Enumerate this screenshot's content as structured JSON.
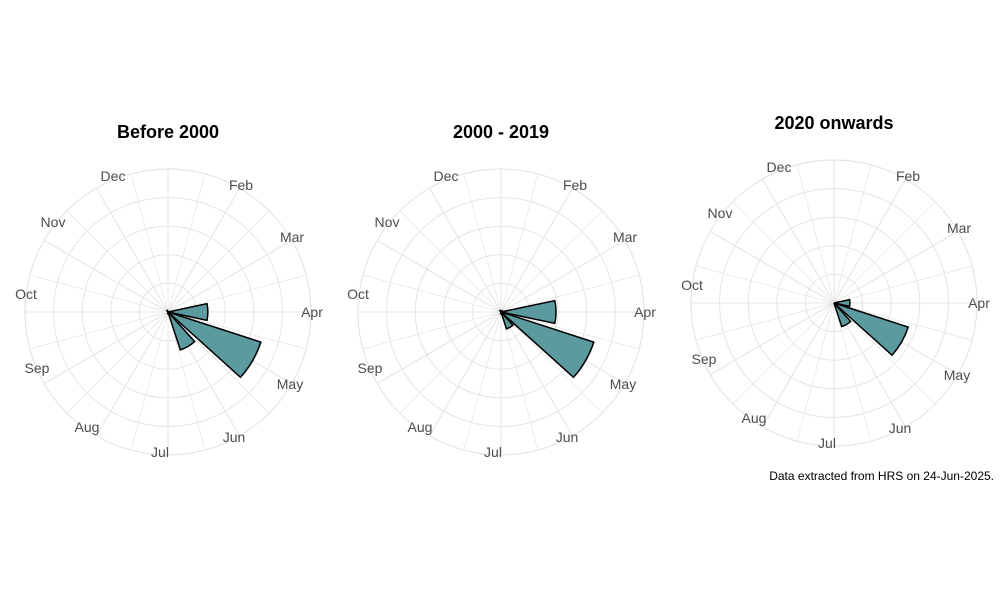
{
  "colors": {
    "bar_fill": "#5B9A9E",
    "bar_stroke": "#000000",
    "grid": "#E5E5E5",
    "label": "#4D4D4D"
  },
  "caption": "Data extracted from HRS on 24-Jun-2025.",
  "chart_data": [
    {
      "type": "bar",
      "polar": true,
      "title": "Before 2000",
      "categories": [
        "Jan",
        "Feb",
        "Mar",
        "Apr",
        "May",
        "Jun",
        "Jul",
        "Aug",
        "Sep",
        "Oct",
        "Nov",
        "Dec"
      ],
      "month_labels": [
        "Dec",
        "Feb",
        "Nov",
        "Mar",
        "Oct",
        "Apr",
        "Sep",
        "May",
        "Aug",
        "Jun",
        "Jul"
      ],
      "values": [
        0,
        0,
        0,
        0.45,
        1.1,
        0.45,
        0.02,
        0,
        0,
        0,
        0,
        0.02
      ],
      "note": "values approximated as radial length relative to the outer grid ring",
      "grid": true
    },
    {
      "type": "bar",
      "polar": true,
      "title": "2000 - 2019",
      "categories": [
        "Jan",
        "Feb",
        "Mar",
        "Apr",
        "May",
        "Jun",
        "Jul",
        "Aug",
        "Sep",
        "Oct",
        "Nov",
        "Dec"
      ],
      "month_labels": [
        "Dec",
        "Feb",
        "Nov",
        "Mar",
        "Oct",
        "Apr",
        "Sep",
        "May",
        "Aug",
        "Jun",
        "Jul"
      ],
      "values": [
        0,
        0,
        0.02,
        0.62,
        1.1,
        0.2,
        0.02,
        0,
        0,
        0,
        0,
        0.02
      ],
      "grid": true
    },
    {
      "type": "bar",
      "polar": true,
      "title": "2020 onwards",
      "categories": [
        "Jan",
        "Feb",
        "Mar",
        "Apr",
        "May",
        "Jun",
        "Jul",
        "Aug",
        "Sep",
        "Oct",
        "Nov",
        "Dec"
      ],
      "month_labels": [
        "Dec",
        "Feb",
        "Nov",
        "Mar",
        "Oct",
        "Apr",
        "Sep",
        "May",
        "Aug",
        "Jun",
        "Jul"
      ],
      "values": [
        0,
        0,
        0,
        0.18,
        0.88,
        0.28,
        0,
        0,
        0,
        0,
        0,
        0
      ],
      "grid": true
    }
  ]
}
